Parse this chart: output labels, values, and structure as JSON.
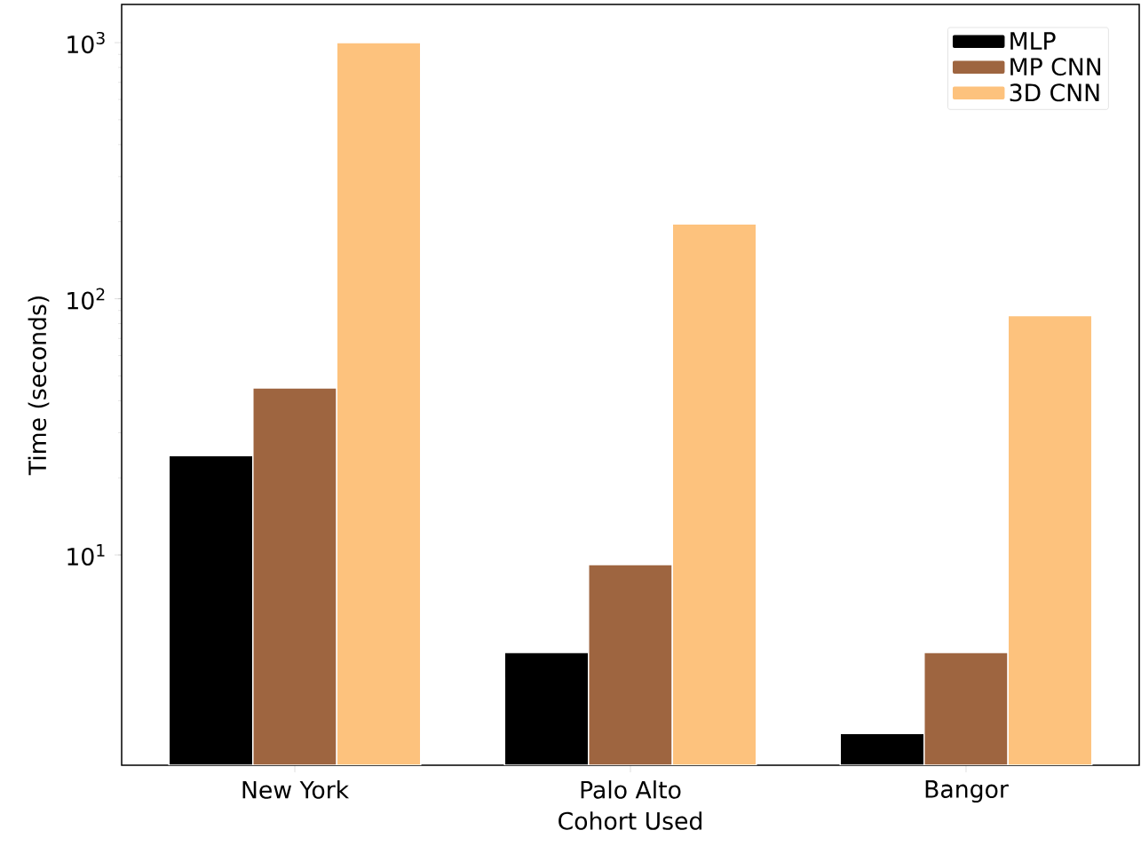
{
  "chart_data": {
    "type": "bar",
    "xlabel": "Cohort Used",
    "ylabel": "Time (seconds)",
    "categories": [
      "New York",
      "Palo Alto",
      "Bangor"
    ],
    "series": [
      {
        "name": "MLP",
        "color": "#000000",
        "values": [
          24.4,
          4.16,
          2.01
        ]
      },
      {
        "name": "MP CNN",
        "color": "#9e6540",
        "values": [
          44.9,
          9.16,
          4.16
        ]
      },
      {
        "name": "3D CNN",
        "color": "#fdc27d",
        "values": [
          1000,
          196,
          86
        ]
      }
    ],
    "log": "y",
    "ylim": [
      1.51,
      1410
    ],
    "yticks": [
      {
        "value": 10,
        "label": "10$^{1}$"
      },
      {
        "value": 100,
        "label": "10$^{2}$"
      },
      {
        "value": 1000,
        "label": "10$^{3}$"
      }
    ],
    "grid": false,
    "legend": "top right"
  }
}
